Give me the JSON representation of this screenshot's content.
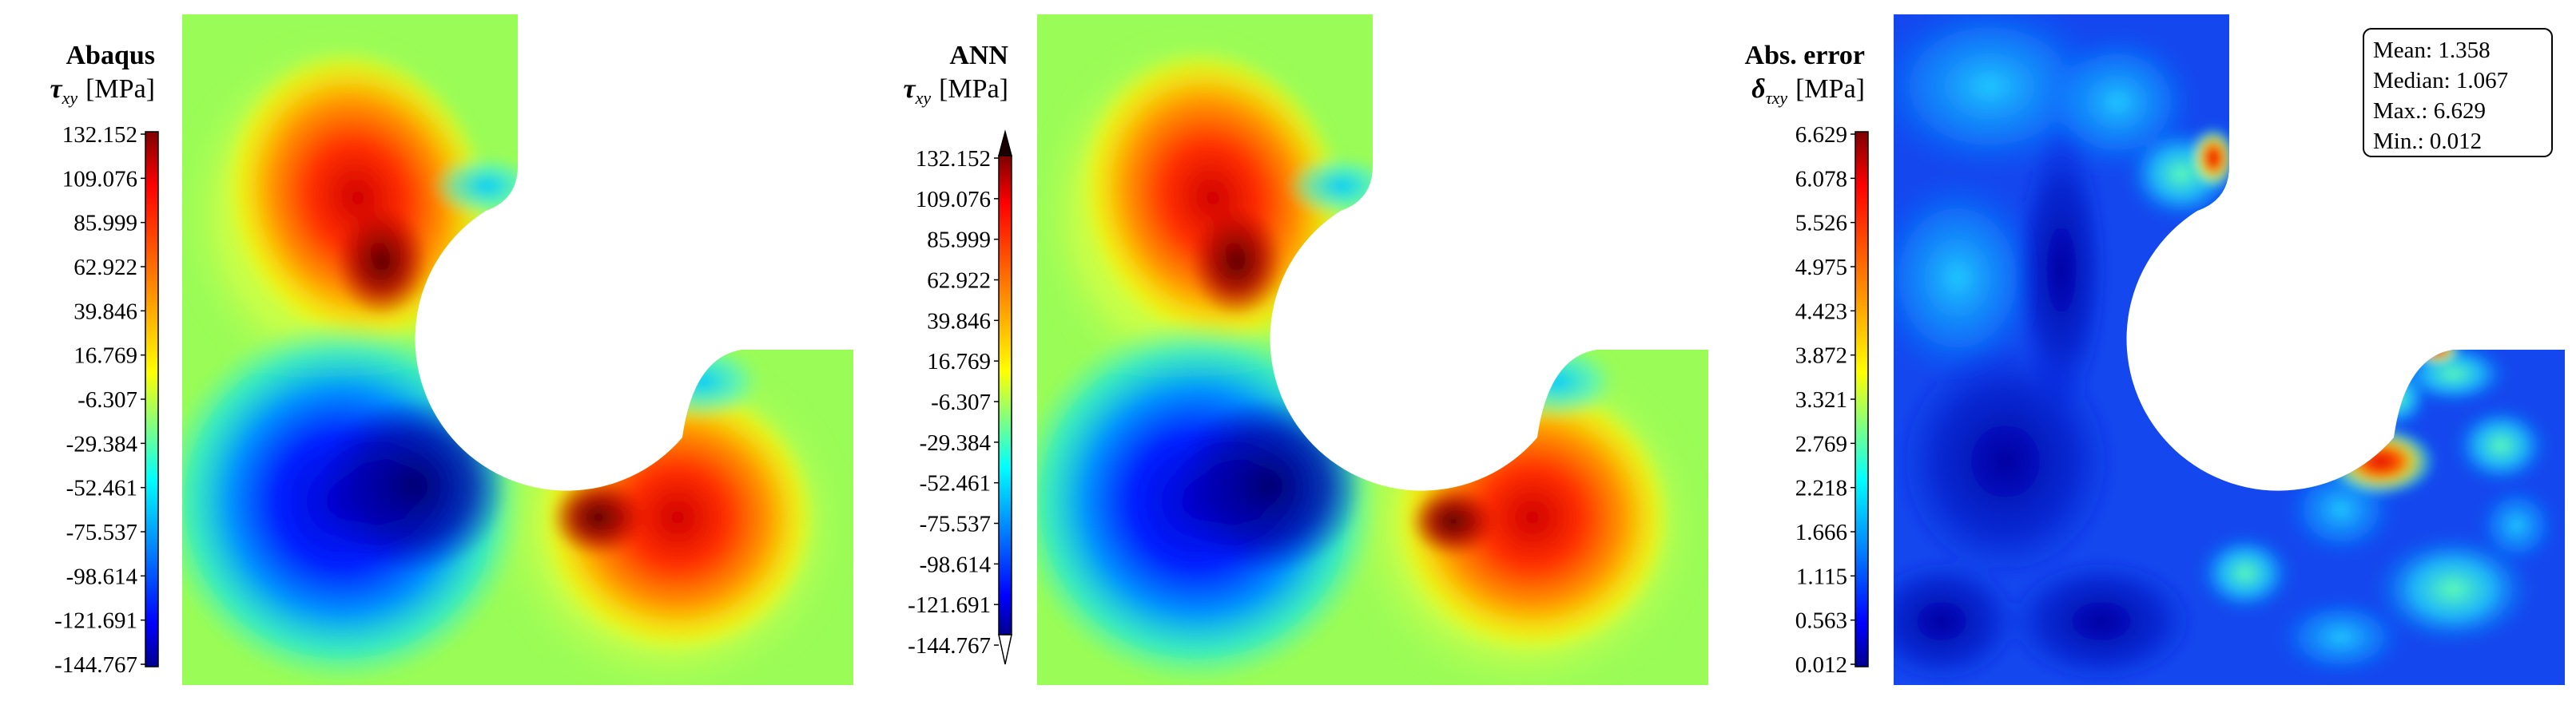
{
  "panels": [
    {
      "title": "Abaqus",
      "quantity_symbol": "τ",
      "quantity_subscript": "xy",
      "unit": "[MPa]",
      "colorbar_ticks": [
        "132.152",
        "109.076",
        "85.999",
        "62.922",
        "39.846",
        "16.769",
        "-6.307",
        "-29.384",
        "-52.461",
        "-75.537",
        "-98.614",
        "-121.691",
        "-144.767"
      ],
      "colormap": [
        "#7f0000",
        "#ff0000",
        "#ff8000",
        "#ffff00",
        "#80ff80",
        "#00ffff",
        "#0080ff",
        "#0000ff",
        "#00008f"
      ]
    },
    {
      "title": "ANN",
      "quantity_symbol": "τ",
      "quantity_subscript": "xy",
      "unit": "[MPa]",
      "colorbar_ticks": [
        "132.152",
        "109.076",
        "85.999",
        "62.922",
        "39.846",
        "16.769",
        "-6.307",
        "-29.384",
        "-52.461",
        "-75.537",
        "-98.614",
        "-121.691",
        "-144.767"
      ],
      "colormap": [
        "#7f0000",
        "#ff0000",
        "#ff8000",
        "#ffff00",
        "#80ff80",
        "#00ffff",
        "#0080ff",
        "#0000ff",
        "#00008f"
      ]
    },
    {
      "title": "Abs. error",
      "quantity_symbol": "δ",
      "quantity_subscript": "τxy",
      "unit": "[MPa]",
      "colorbar_ticks": [
        "6.629",
        "6.078",
        "5.526",
        "4.975",
        "4.423",
        "3.872",
        "3.321",
        "2.769",
        "2.218",
        "1.666",
        "1.115",
        "0.563",
        "0.012"
      ],
      "colormap": [
        "#7f0000",
        "#ff0000",
        "#ff8000",
        "#ffff00",
        "#80ff80",
        "#00ffff",
        "#0080ff",
        "#0000ff",
        "#00008f"
      ]
    }
  ],
  "error_stats": {
    "mean": "Mean: 1.358",
    "median": "Median: 1.067",
    "max": "Max.: 6.629",
    "min": "Min.: 0.012"
  },
  "field_colors": {
    "background": "#9afc56",
    "hot": "#e0180f",
    "hot_core": "#7a0000",
    "warm": "#ffb000",
    "cold": "#1010e0",
    "cold_core": "#000080",
    "cyan": "#30d8ff",
    "error_base": "#1448ee"
  }
}
